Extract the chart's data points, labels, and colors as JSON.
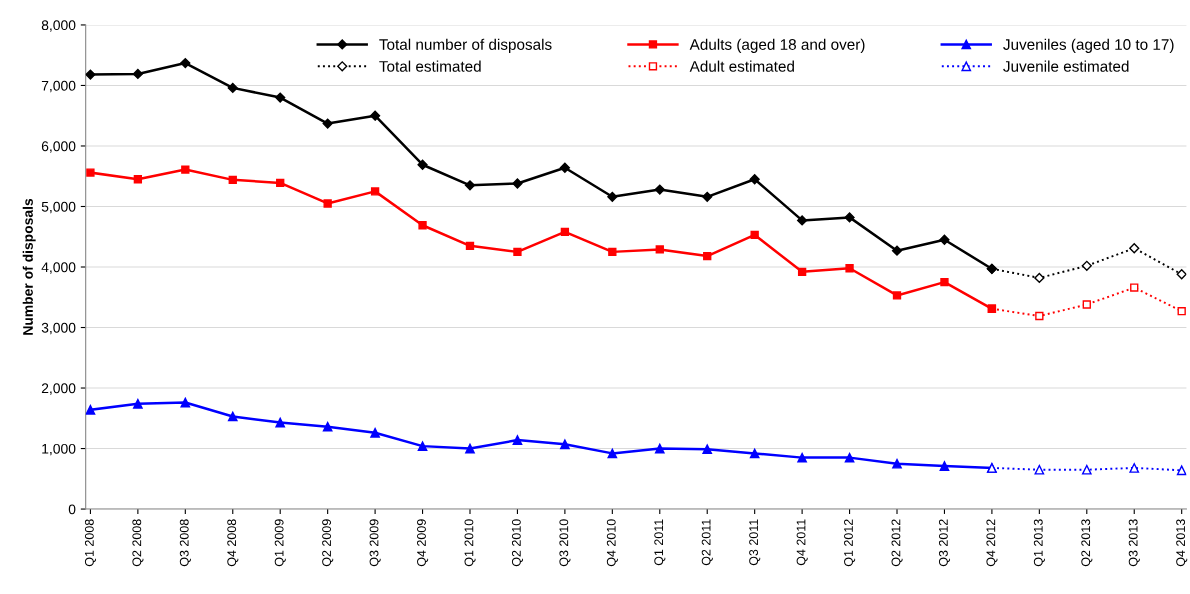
{
  "chart_data": {
    "type": "line",
    "ylabel": "Number of disposals",
    "categories": [
      "Q1 2008",
      "Q2 2008",
      "Q3 2008",
      "Q4 2008",
      "Q1 2009",
      "Q2 2009",
      "Q3 2009",
      "Q4 2009",
      "Q1 2010",
      "Q2 2010",
      "Q3 2010",
      "Q4 2010",
      "Q1 2011",
      "Q2 2011",
      "Q3 2011",
      "Q4 2011",
      "Q1 2012",
      "Q2 2012",
      "Q3 2012",
      "Q4 2012",
      "Q1 2013",
      "Q2 2013",
      "Q3 2013",
      "Q4 2013"
    ],
    "series": [
      {
        "name": "Total number of disposals",
        "color": "#000000",
        "marker": "diamond",
        "line_style": "solid",
        "values": [
          7180,
          7190,
          7370,
          6960,
          6800,
          6370,
          6500,
          5690,
          5350,
          5380,
          5640,
          5160,
          5280,
          5160,
          5450,
          4770,
          4820,
          4270,
          4450,
          3970,
          null,
          null,
          null,
          null
        ]
      },
      {
        "name": "Total estimated",
        "color": "#000000",
        "marker": "diamond",
        "line_style": "dotted",
        "values": [
          null,
          null,
          null,
          null,
          null,
          null,
          null,
          null,
          null,
          null,
          null,
          null,
          null,
          null,
          null,
          null,
          null,
          null,
          null,
          3970,
          3820,
          4020,
          4310,
          3880
        ]
      },
      {
        "name": "Adults (aged 18 and over)",
        "color": "#ff0000",
        "marker": "square",
        "line_style": "solid",
        "values": [
          5560,
          5450,
          5610,
          5440,
          5390,
          5050,
          5250,
          4690,
          4350,
          4250,
          4580,
          4250,
          4290,
          4180,
          4530,
          3920,
          3980,
          3530,
          3750,
          3310,
          null,
          null,
          null,
          null
        ]
      },
      {
        "name": "Adult estimated",
        "color": "#ff0000",
        "marker": "square",
        "line_style": "dotted",
        "values": [
          null,
          null,
          null,
          null,
          null,
          null,
          null,
          null,
          null,
          null,
          null,
          null,
          null,
          null,
          null,
          null,
          null,
          null,
          null,
          3310,
          3190,
          3380,
          3660,
          3270
        ]
      },
      {
        "name": "Juveniles (aged 10 to 17)",
        "color": "#0000ff",
        "marker": "triangle",
        "line_style": "solid",
        "values": [
          1640,
          1740,
          1760,
          1530,
          1430,
          1360,
          1260,
          1040,
          1000,
          1140,
          1070,
          920,
          1000,
          990,
          920,
          850,
          850,
          750,
          710,
          680,
          null,
          null,
          null,
          null
        ]
      },
      {
        "name": "Juvenile estimated",
        "color": "#0000ff",
        "marker": "triangle",
        "line_style": "dotted",
        "values": [
          null,
          null,
          null,
          null,
          null,
          null,
          null,
          null,
          null,
          null,
          null,
          null,
          null,
          null,
          null,
          null,
          null,
          null,
          null,
          680,
          650,
          650,
          680,
          640
        ]
      }
    ],
    "ylim": [
      0,
      8000
    ],
    "yticks": [
      {
        "value": 0,
        "label": "0"
      },
      {
        "value": 1000,
        "label": "1,000"
      },
      {
        "value": 2000,
        "label": "2,000"
      },
      {
        "value": 3000,
        "label": "3,000"
      },
      {
        "value": 4000,
        "label": "4,000"
      },
      {
        "value": 5000,
        "label": "5,000"
      },
      {
        "value": 6000,
        "label": "6,000"
      },
      {
        "value": 7000,
        "label": "7,000"
      },
      {
        "value": 8000,
        "label": "8,000"
      }
    ],
    "grid": "y",
    "legend": "top"
  }
}
